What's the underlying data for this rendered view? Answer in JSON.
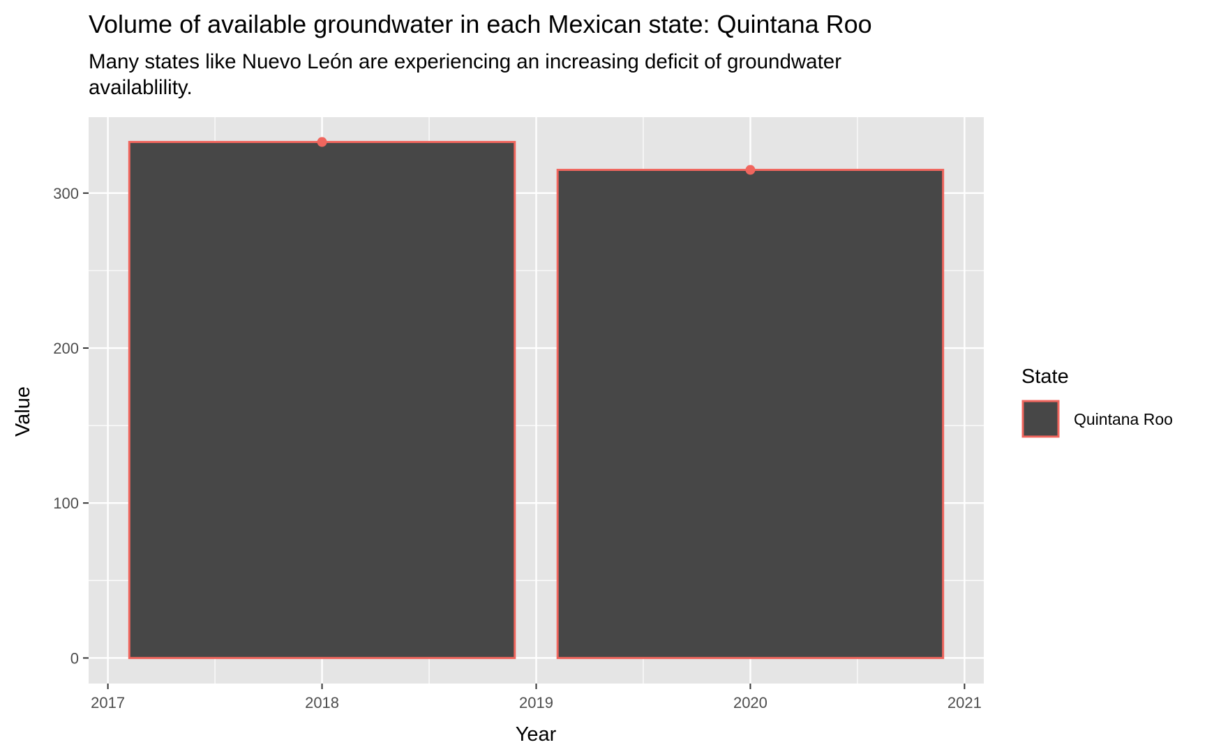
{
  "chart_data": {
    "type": "bar",
    "title": "Volume of available groundwater in each Mexican state: Quintana Roo",
    "subtitle": "Many states like Nuevo León are experiencing an increasing deficit of groundwater availablility.",
    "xlabel": "Year",
    "ylabel": "Value",
    "x_ticks": [
      "2017",
      "2018",
      "2019",
      "2020",
      "2021"
    ],
    "y_ticks": [
      "0",
      "100",
      "200",
      "300"
    ],
    "xlim": [
      2016.91,
      2021.09
    ],
    "ylim": [
      -16.5,
      349
    ],
    "grid": true,
    "legend": {
      "title": "State",
      "position": "right"
    },
    "series": [
      {
        "name": "Quintana Roo",
        "x": [
          2018,
          2020
        ],
        "values": [
          333,
          315
        ]
      }
    ],
    "colors": {
      "bar_fill": "#474747",
      "bar_outline": "#F0665E",
      "panel_bg": "#E5E5E5",
      "grid": "#FFFFFF"
    }
  }
}
